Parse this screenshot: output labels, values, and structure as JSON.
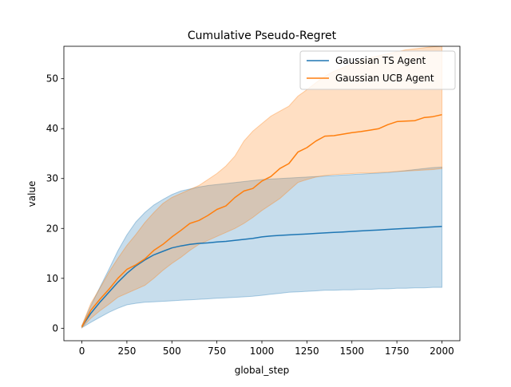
{
  "chart_data": {
    "type": "line",
    "title": "Cumulative Pseudo-Regret",
    "xlabel": "global_step",
    "ylabel": "value",
    "xlim": [
      -100,
      2100
    ],
    "ylim": [
      -2.5,
      56.5
    ],
    "xticks": [
      0,
      250,
      500,
      750,
      1000,
      1250,
      1500,
      1750,
      2000
    ],
    "yticks": [
      0,
      10,
      20,
      30,
      40,
      50
    ],
    "grid": false,
    "legend_position": "top-right",
    "series": [
      {
        "name": "Gaussian TS Agent",
        "color": "#1f77b4",
        "band_color": "#1f77b4",
        "x": [
          0,
          50,
          100,
          150,
          200,
          250,
          300,
          350,
          400,
          450,
          500,
          550,
          600,
          650,
          700,
          750,
          800,
          850,
          900,
          950,
          1000,
          1050,
          1100,
          1150,
          1200,
          1250,
          1300,
          1350,
          1400,
          1450,
          1500,
          1550,
          1600,
          1650,
          1700,
          1750,
          1800,
          1850,
          1900,
          1950,
          2000
        ],
        "y": [
          0.3,
          3.0,
          5.2,
          7.2,
          9.2,
          11.0,
          12.5,
          13.7,
          14.7,
          15.4,
          16.1,
          16.5,
          16.8,
          17.0,
          17.1,
          17.3,
          17.4,
          17.6,
          17.8,
          18.0,
          18.3,
          18.5,
          18.6,
          18.7,
          18.8,
          18.9,
          19.0,
          19.1,
          19.2,
          19.3,
          19.4,
          19.5,
          19.6,
          19.7,
          19.8,
          19.9,
          20.0,
          20.1,
          20.2,
          20.3,
          20.4
        ],
        "lower": [
          0.1,
          1.2,
          2.2,
          3.2,
          4.0,
          4.7,
          5.0,
          5.2,
          5.3,
          5.4,
          5.5,
          5.6,
          5.7,
          5.8,
          5.9,
          6.0,
          6.1,
          6.2,
          6.3,
          6.4,
          6.6,
          6.8,
          7.0,
          7.2,
          7.3,
          7.4,
          7.5,
          7.6,
          7.6,
          7.7,
          7.7,
          7.8,
          7.8,
          7.9,
          7.9,
          8.0,
          8.0,
          8.1,
          8.1,
          8.2,
          8.2
        ],
        "upper": [
          0.5,
          4.5,
          8.2,
          11.8,
          15.5,
          18.7,
          21.3,
          23.2,
          24.7,
          25.8,
          26.8,
          27.5,
          27.9,
          28.3,
          28.6,
          28.8,
          29.0,
          29.2,
          29.4,
          29.6,
          29.8,
          29.9,
          30.0,
          30.1,
          30.2,
          30.3,
          30.4,
          30.5,
          30.6,
          30.7,
          30.8,
          30.9,
          31.0,
          31.1,
          31.2,
          31.4,
          31.6,
          31.8,
          32.0,
          32.2,
          32.3
        ]
      },
      {
        "name": "Gaussian UCB Agent",
        "color": "#ff7f0e",
        "band_color": "#ff7f0e",
        "x": [
          0,
          50,
          100,
          150,
          200,
          250,
          300,
          350,
          400,
          450,
          500,
          550,
          600,
          650,
          700,
          750,
          800,
          850,
          900,
          950,
          1000,
          1050,
          1100,
          1150,
          1200,
          1250,
          1300,
          1350,
          1400,
          1450,
          1500,
          1550,
          1600,
          1650,
          1700,
          1750,
          1800,
          1850,
          1900,
          1950,
          2000
        ],
        "y": [
          0.3,
          3.6,
          5.8,
          7.8,
          10.0,
          11.8,
          12.7,
          13.9,
          15.6,
          16.8,
          18.3,
          19.6,
          21.0,
          21.6,
          22.6,
          23.8,
          24.5,
          26.2,
          27.5,
          28.0,
          29.5,
          30.4,
          32.0,
          33.0,
          35.3,
          36.2,
          37.5,
          38.5,
          38.6,
          38.9,
          39.2,
          39.4,
          39.7,
          40.0,
          40.8,
          41.4,
          41.5,
          41.6,
          42.2,
          42.4,
          42.8
        ],
        "lower": [
          0.1,
          2.0,
          3.5,
          4.8,
          6.2,
          7.0,
          7.8,
          8.6,
          10.0,
          11.6,
          13.0,
          14.2,
          15.6,
          16.8,
          17.6,
          18.4,
          19.2,
          20.0,
          21.0,
          22.2,
          23.6,
          24.8,
          26.0,
          27.6,
          29.2,
          29.8,
          30.3,
          30.6,
          30.8,
          30.9,
          31.0,
          31.1,
          31.1,
          31.2,
          31.3,
          31.4,
          31.5,
          31.6,
          31.7,
          31.8,
          32.0
        ],
        "upper": [
          0.5,
          5.0,
          8.0,
          11.2,
          14.0,
          16.6,
          18.8,
          21.2,
          23.2,
          25.0,
          26.2,
          27.0,
          27.8,
          28.6,
          29.8,
          31.0,
          32.5,
          34.5,
          37.5,
          39.5,
          41.0,
          42.5,
          43.5,
          44.5,
          46.5,
          47.8,
          49.2,
          50.5,
          51.5,
          52.2,
          53.0,
          53.6,
          54.2,
          54.6,
          55.0,
          55.4,
          55.8,
          56.0,
          56.2,
          56.4,
          56.5
        ]
      }
    ]
  }
}
